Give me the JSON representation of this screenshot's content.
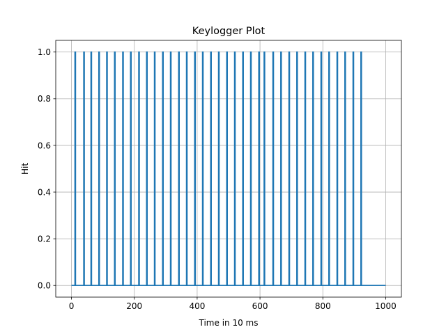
{
  "chart_data": {
    "type": "line",
    "title": "Keylogger Plot",
    "xlabel": "Time in 10 ms",
    "ylabel": "Hit",
    "xlim": [
      -50,
      1050
    ],
    "ylim": [
      -0.05,
      1.05
    ],
    "x_ticks": [
      0,
      200,
      400,
      600,
      800,
      1000
    ],
    "x_tick_labels": [
      "0",
      "200",
      "400",
      "600",
      "800",
      "1000"
    ],
    "y_ticks": [
      0.0,
      0.2,
      0.4,
      0.6,
      0.8,
      1.0
    ],
    "y_tick_labels": [
      "0.0",
      "0.2",
      "0.4",
      "0.6",
      "0.8",
      "1.0"
    ],
    "grid": true,
    "legend": "none",
    "series": [
      {
        "color": "#1f77b4",
        "x_start": 0,
        "x_end": 1000,
        "baseline": 0,
        "peak": 1,
        "spike_pulses": [
          [
            11,
            13
          ],
          [
            39,
            41
          ],
          [
            62,
            64
          ],
          [
            87,
            89
          ],
          [
            112,
            114
          ],
          [
            137,
            139
          ],
          [
            163,
            165
          ],
          [
            188,
            190
          ],
          [
            214,
            216
          ],
          [
            239,
            241
          ],
          [
            264,
            266
          ],
          [
            290,
            292
          ],
          [
            315,
            317
          ],
          [
            341,
            343
          ],
          [
            366,
            368
          ],
          [
            392,
            394
          ],
          [
            417,
            419
          ],
          [
            443,
            445
          ],
          [
            468,
            470
          ],
          [
            494,
            496
          ],
          [
            519,
            521
          ],
          [
            545,
            547
          ],
          [
            570,
            572
          ],
          [
            596,
            598
          ],
          [
            613,
            615
          ],
          [
            641,
            643
          ],
          [
            666,
            668
          ],
          [
            692,
            694
          ],
          [
            717,
            719
          ],
          [
            743,
            745
          ],
          [
            768,
            770
          ],
          [
            794,
            796
          ],
          [
            819,
            821
          ],
          [
            845,
            847
          ],
          [
            870,
            872
          ],
          [
            896,
            898
          ],
          [
            921,
            923
          ]
        ]
      }
    ]
  }
}
